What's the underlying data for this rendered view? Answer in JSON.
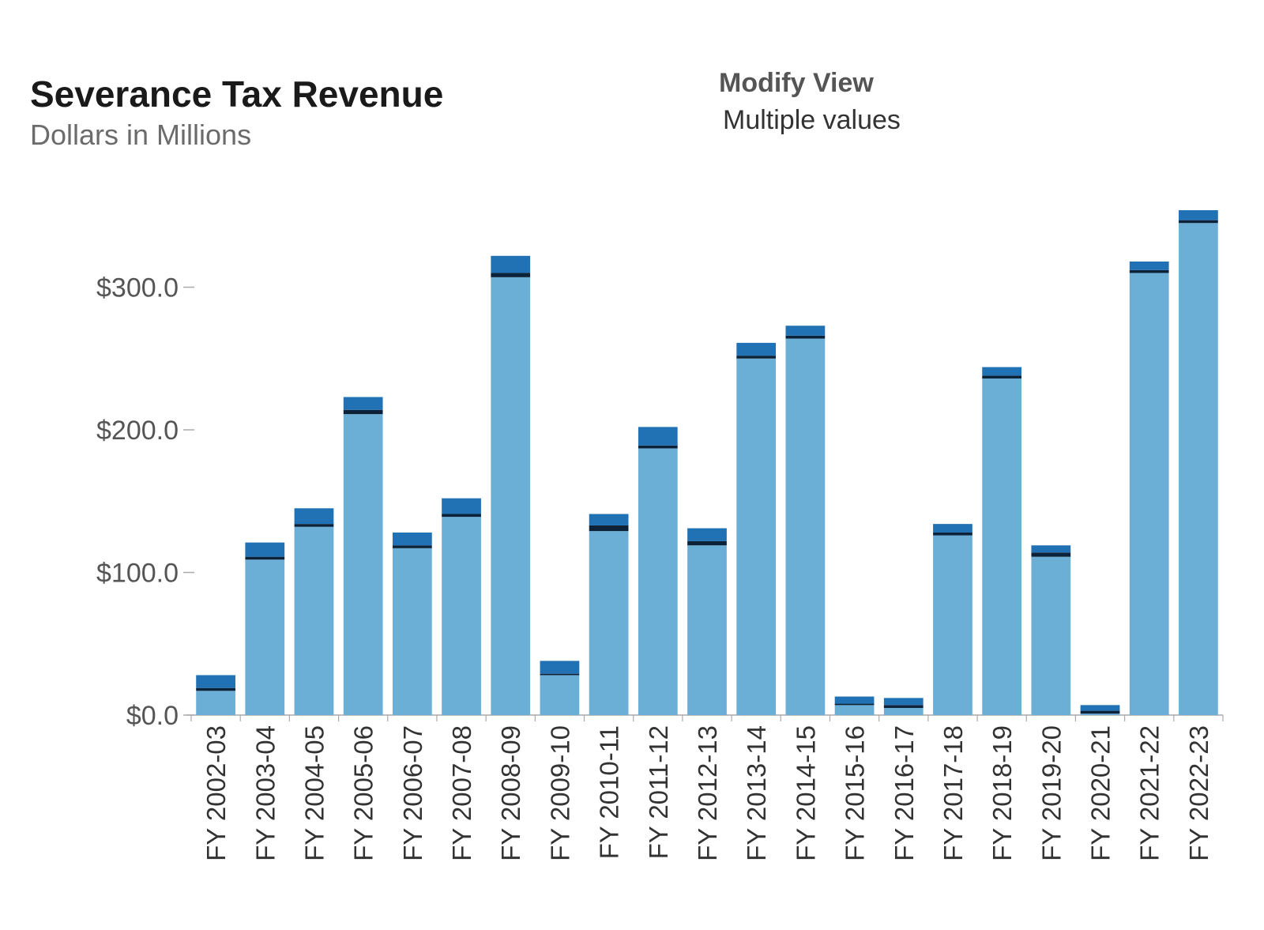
{
  "header": {
    "title": "Severance Tax Revenue",
    "subtitle": "Dollars in Millions"
  },
  "filter": {
    "label": "Modify View",
    "value": "Multiple values"
  },
  "colors": {
    "main": "#6baed6",
    "band": "#2171b5",
    "line": "#0b2239",
    "axis": "#aaaaaa"
  },
  "chart_data": {
    "type": "bar",
    "stacked": true,
    "categories": [
      "FY 2002-03",
      "FY 2003-04",
      "FY 2004-05",
      "FY 2005-06",
      "FY 2006-07",
      "FY 2007-08",
      "FY 2008-09",
      "FY 2009-10",
      "FY 2010-11",
      "FY 2011-12",
      "FY 2012-13",
      "FY 2013-14",
      "FY 2014-15",
      "FY 2015-16",
      "FY 2016-17",
      "FY 2017-18",
      "FY 2018-19",
      "FY 2019-20",
      "FY 2020-21",
      "FY 2021-22",
      "FY 2022-23"
    ],
    "series": [
      {
        "values": [
          17,
          109,
          132,
          211,
          117,
          139,
          307,
          28,
          129,
          187,
          119,
          250,
          264,
          7,
          5,
          126,
          236,
          111,
          1,
          310,
          345
        ]
      },
      {
        "values": [
          2,
          2,
          2,
          3,
          2,
          2,
          3,
          1,
          4,
          2,
          3,
          2,
          2,
          1,
          2,
          2,
          2,
          3,
          2,
          2,
          2
        ]
      },
      {
        "values": [
          9,
          10,
          11,
          9,
          9,
          11,
          12,
          9,
          8,
          13,
          9,
          9,
          7,
          5,
          5,
          6,
          6,
          5,
          4,
          6,
          7
        ]
      }
    ],
    "yticks": [
      0,
      100,
      200,
      300
    ],
    "ytick_labels": [
      "$0.0",
      "$100.0",
      "$200.0",
      "$300.0"
    ],
    "ylim": [
      0,
      360
    ],
    "grid": false,
    "legend": "none"
  }
}
